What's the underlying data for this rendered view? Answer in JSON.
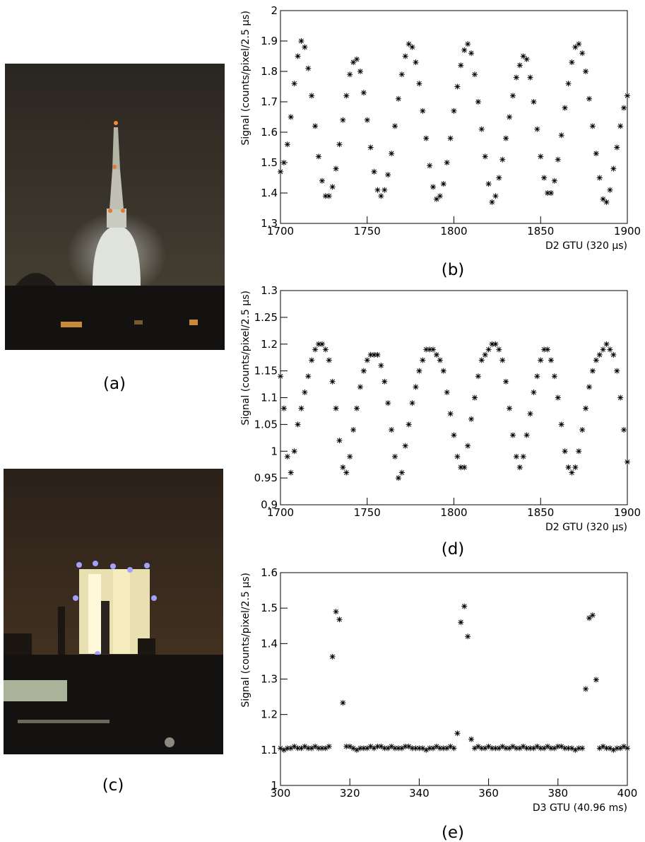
{
  "photos": [
    {
      "caption": "(a)"
    },
    {
      "caption": "(c)"
    }
  ],
  "chart_data": [
    {
      "type": "scatter",
      "caption": "(b)",
      "xlabel": "D2 GTU (320 µs)",
      "ylabel": "Signal (counts/pixel/2.5 µs)",
      "color": "#000000",
      "xlim": [
        1700,
        1900
      ],
      "xticks": [
        1700,
        1750,
        1800,
        1850,
        1900
      ],
      "ylim": [
        1.3,
        2
      ],
      "yticks": [
        1.3,
        1.4,
        1.5,
        1.6,
        1.7,
        1.8,
        1.9,
        2
      ],
      "x": [
        1700,
        1702,
        1704,
        1706,
        1708,
        1710,
        1712,
        1714,
        1716,
        1718,
        1720,
        1722,
        1724,
        1726,
        1728,
        1730,
        1732,
        1734,
        1736,
        1738,
        1740,
        1742,
        1744,
        1746,
        1748,
        1750,
        1752,
        1754,
        1756,
        1758,
        1760,
        1762,
        1764,
        1766,
        1768,
        1770,
        1772,
        1774,
        1776,
        1778,
        1780,
        1782,
        1784,
        1786,
        1788,
        1790,
        1792,
        1794,
        1796,
        1798,
        1800,
        1802,
        1804,
        1806,
        1808,
        1810,
        1812,
        1814,
        1816,
        1818,
        1820,
        1822,
        1824,
        1826,
        1828,
        1830,
        1832,
        1834,
        1836,
        1838,
        1840,
        1842,
        1844,
        1846,
        1848,
        1850,
        1852,
        1854,
        1856,
        1858,
        1860,
        1862,
        1864,
        1866,
        1868,
        1870,
        1872,
        1874,
        1876,
        1878,
        1880,
        1882,
        1884,
        1886,
        1888,
        1890,
        1892,
        1894,
        1896,
        1898,
        1900
      ],
      "values": [
        1.47,
        1.5,
        1.56,
        1.65,
        1.76,
        1.85,
        1.9,
        1.88,
        1.81,
        1.72,
        1.62,
        1.52,
        1.44,
        1.39,
        1.39,
        1.42,
        1.48,
        1.56,
        1.64,
        1.72,
        1.79,
        1.83,
        1.84,
        1.8,
        1.73,
        1.64,
        1.55,
        1.47,
        1.41,
        1.39,
        1.41,
        1.46,
        1.53,
        1.62,
        1.71,
        1.79,
        1.85,
        1.89,
        1.88,
        1.83,
        1.76,
        1.67,
        1.58,
        1.49,
        1.42,
        1.38,
        1.39,
        1.43,
        1.5,
        1.58,
        1.67,
        1.75,
        1.82,
        1.87,
        1.89,
        1.86,
        1.79,
        1.7,
        1.61,
        1.52,
        1.43,
        1.37,
        1.39,
        1.45,
        1.51,
        1.58,
        1.65,
        1.72,
        1.78,
        1.82,
        1.85,
        1.84,
        1.78,
        1.7,
        1.61,
        1.52,
        1.45,
        1.4,
        1.4,
        1.44,
        1.51,
        1.59,
        1.68,
        1.76,
        1.83,
        1.88,
        1.89,
        1.86,
        1.8,
        1.71,
        1.62,
        1.53,
        1.45,
        1.38,
        1.37,
        1.41,
        1.48,
        1.55,
        1.62,
        1.68,
        1.72
      ]
    },
    {
      "type": "scatter",
      "caption": "(d)",
      "xlabel": "D2 GTU (320 µs)",
      "ylabel": "Signal (counts/pixel/2.5 µs)",
      "color": "#000000",
      "xlim": [
        1700,
        1900
      ],
      "xticks": [
        1700,
        1750,
        1800,
        1850,
        1900
      ],
      "ylim": [
        0.9,
        1.3
      ],
      "yticks": [
        0.9,
        0.95,
        1,
        1.05,
        1.1,
        1.15,
        1.2,
        1.25,
        1.3
      ],
      "x": [
        1700,
        1702,
        1704,
        1706,
        1708,
        1710,
        1712,
        1714,
        1716,
        1718,
        1720,
        1722,
        1724,
        1726,
        1728,
        1730,
        1732,
        1734,
        1736,
        1738,
        1740,
        1742,
        1744,
        1746,
        1748,
        1750,
        1752,
        1754,
        1756,
        1758,
        1760,
        1762,
        1764,
        1766,
        1768,
        1770,
        1772,
        1774,
        1776,
        1778,
        1780,
        1782,
        1784,
        1786,
        1788,
        1790,
        1792,
        1794,
        1796,
        1798,
        1800,
        1802,
        1804,
        1806,
        1808,
        1810,
        1812,
        1814,
        1816,
        1818,
        1820,
        1822,
        1824,
        1826,
        1828,
        1830,
        1832,
        1834,
        1836,
        1838,
        1840,
        1842,
        1844,
        1846,
        1848,
        1850,
        1852,
        1854,
        1856,
        1858,
        1860,
        1862,
        1864,
        1866,
        1868,
        1870,
        1872,
        1874,
        1876,
        1878,
        1880,
        1882,
        1884,
        1886,
        1888,
        1890,
        1892,
        1894,
        1896,
        1898,
        1900
      ],
      "values": [
        1.14,
        1.08,
        0.99,
        0.96,
        1.0,
        1.05,
        1.08,
        1.11,
        1.14,
        1.17,
        1.19,
        1.2,
        1.2,
        1.19,
        1.17,
        1.13,
        1.08,
        1.02,
        0.97,
        0.96,
        0.99,
        1.04,
        1.08,
        1.12,
        1.15,
        1.17,
        1.18,
        1.18,
        1.18,
        1.16,
        1.13,
        1.09,
        1.04,
        0.99,
        0.95,
        0.96,
        1.01,
        1.05,
        1.09,
        1.12,
        1.15,
        1.17,
        1.19,
        1.19,
        1.19,
        1.18,
        1.17,
        1.15,
        1.11,
        1.07,
        1.03,
        0.99,
        0.97,
        0.97,
        1.01,
        1.06,
        1.1,
        1.14,
        1.17,
        1.18,
        1.19,
        1.2,
        1.2,
        1.19,
        1.17,
        1.13,
        1.08,
        1.03,
        0.99,
        0.97,
        0.99,
        1.03,
        1.07,
        1.11,
        1.14,
        1.17,
        1.19,
        1.19,
        1.17,
        1.14,
        1.1,
        1.05,
        1.0,
        0.97,
        0.96,
        0.97,
        1.0,
        1.04,
        1.08,
        1.12,
        1.15,
        1.17,
        1.18,
        1.19,
        1.2,
        1.19,
        1.18,
        1.15,
        1.1,
        1.04,
        0.98
      ]
    },
    {
      "type": "scatter",
      "caption": "(e)",
      "xlabel": "D3 GTU (40.96 ms)",
      "ylabel": "Signal (counts/pixel/2.5 µs)",
      "color": "#000000",
      "xlim": [
        300,
        400
      ],
      "xticks": [
        300,
        320,
        340,
        360,
        380,
        400
      ],
      "ylim": [
        1,
        1.6
      ],
      "yticks": [
        1,
        1.1,
        1.2,
        1.3,
        1.4,
        1.5,
        1.6
      ],
      "x": [
        300,
        301,
        302,
        303,
        304,
        305,
        306,
        307,
        308,
        309,
        310,
        311,
        312,
        313,
        314,
        315,
        316,
        317,
        318,
        319,
        320,
        321,
        322,
        323,
        324,
        325,
        326,
        327,
        328,
        329,
        330,
        331,
        332,
        333,
        334,
        335,
        336,
        337,
        338,
        339,
        340,
        341,
        342,
        343,
        344,
        345,
        346,
        347,
        348,
        349,
        350,
        351,
        352,
        353,
        354,
        355,
        356,
        357,
        358,
        359,
        360,
        361,
        362,
        363,
        364,
        365,
        366,
        367,
        368,
        369,
        370,
        371,
        372,
        373,
        374,
        375,
        376,
        377,
        378,
        379,
        380,
        381,
        382,
        383,
        384,
        385,
        386,
        387,
        388,
        389,
        390,
        391,
        392,
        393,
        394,
        395,
        396,
        397,
        398,
        399,
        400
      ],
      "values": [
        1.105,
        1.1,
        1.105,
        1.105,
        1.11,
        1.105,
        1.105,
        1.11,
        1.105,
        1.105,
        1.11,
        1.105,
        1.105,
        1.105,
        1.11,
        1.363,
        1.49,
        1.468,
        1.233,
        1.11,
        1.11,
        1.105,
        1.1,
        1.105,
        1.105,
        1.105,
        1.11,
        1.105,
        1.11,
        1.11,
        1.105,
        1.105,
        1.11,
        1.105,
        1.105,
        1.105,
        1.11,
        1.11,
        1.105,
        1.105,
        1.105,
        1.105,
        1.1,
        1.105,
        1.105,
        1.11,
        1.105,
        1.105,
        1.105,
        1.11,
        1.105,
        1.147,
        1.46,
        1.505,
        1.42,
        1.13,
        1.105,
        1.11,
        1.105,
        1.105,
        1.11,
        1.105,
        1.105,
        1.105,
        1.11,
        1.105,
        1.105,
        1.11,
        1.105,
        1.105,
        1.11,
        1.105,
        1.105,
        1.105,
        1.11,
        1.105,
        1.105,
        1.11,
        1.105,
        1.105,
        1.11,
        1.11,
        1.105,
        1.105,
        1.105,
        1.1,
        1.105,
        1.105,
        1.272,
        1.472,
        1.48,
        1.298,
        1.105,
        1.11,
        1.105,
        1.105,
        1.1,
        1.105,
        1.105,
        1.11,
        1.105
      ]
    }
  ]
}
